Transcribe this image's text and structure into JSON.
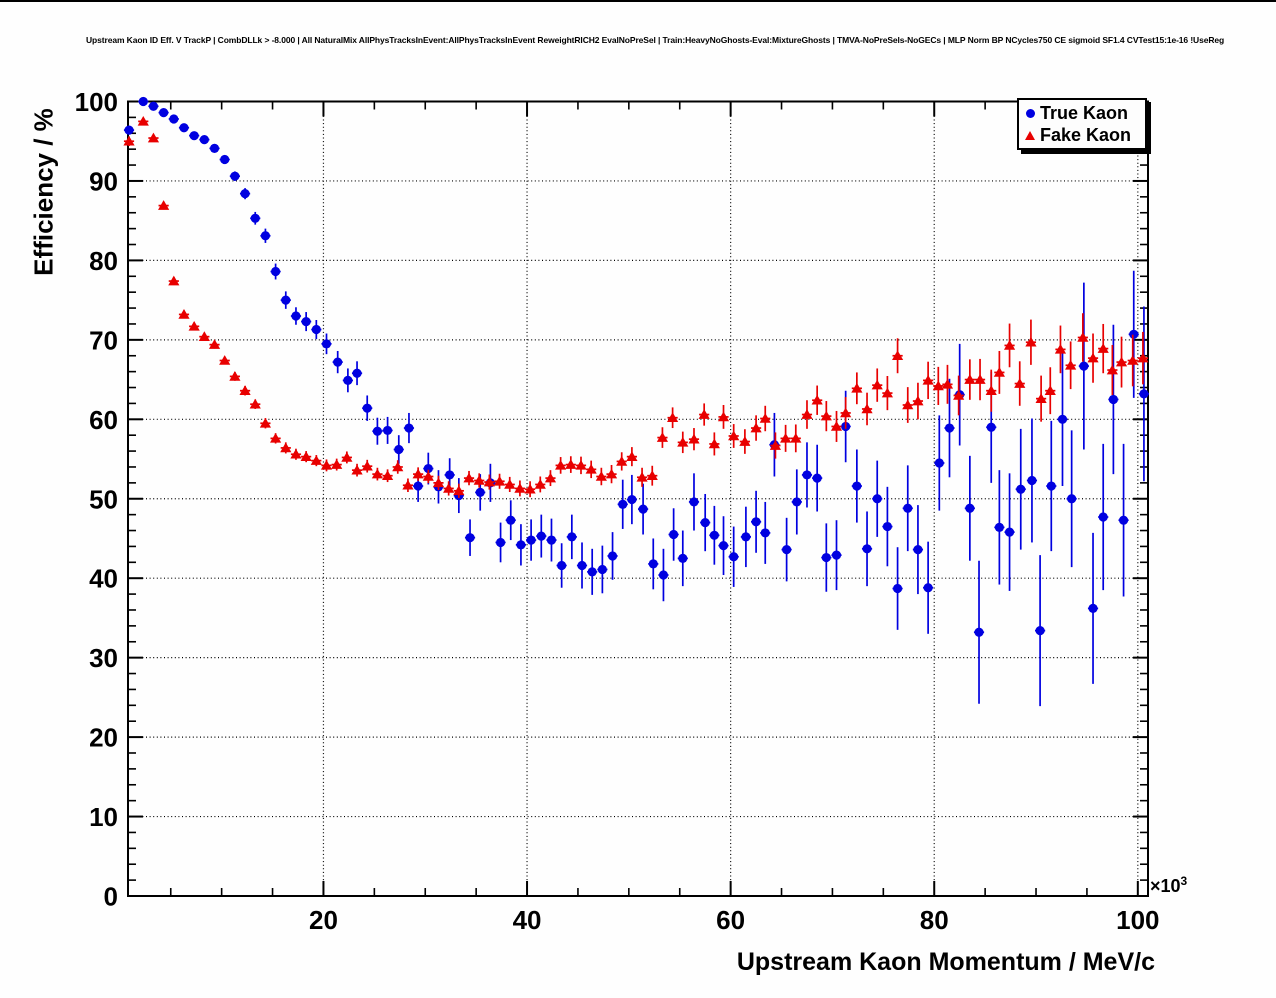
{
  "title": "Upstream Kaon ID Eff. V TrackP | CombDLLk > -8.000 | All NaturalMix AllPhysTracksInEvent:AllPhysTracksInEvent ReweightRICH2 EvalNoPreSel | Train:HeavyNoGhosts-Eval:MixtureGhosts | TMVA-NoPreSels-NoGECs | MLP Norm BP NCycles750 CE sigmoid SF1.4 CVTest15:1e-16 !UseReg",
  "legend": {
    "items": [
      {
        "label": "True Kaon",
        "marker": "circle",
        "color": "#0000e0"
      },
      {
        "label": "Fake Kaon",
        "marker": "triangle",
        "color": "#e80000"
      }
    ]
  },
  "x_power": {
    "prefix": "×10",
    "exponent": "3"
  },
  "chart_data": {
    "type": "scatter",
    "title": "Upstream Kaon ID Eff. V TrackP | CombDLLk > -8.000 | All NaturalMix AllPhysTracksInEvent:AllPhysTracksInEvent ReweightRICH2 EvalNoPreSel | Train:HeavyNoGhosts-Eval:MixtureGhosts | TMVA-NoPreSels-NoGECs | MLP Norm BP NCycles750 CE sigmoid SF1.4 CVTest15:1e-16 !UseReg",
    "xlabel": "Upstream Kaon Momentum / MeV/c",
    "ylabel": "Efficiency / %",
    "x_unit_scale": "x10^3",
    "xlim": [
      0.8,
      101.0
    ],
    "ylim": [
      0,
      100
    ],
    "x_major_ticks": [
      20,
      40,
      60,
      80,
      100
    ],
    "x_tick_labels": [
      "20",
      "40",
      "60",
      "80",
      "100"
    ],
    "x_minor_step": 5,
    "y_major_ticks": [
      0,
      10,
      20,
      30,
      40,
      50,
      60,
      70,
      80,
      90,
      100
    ],
    "y_tick_labels": [
      "0",
      "10",
      "20",
      "30",
      "40",
      "50",
      "60",
      "70",
      "80",
      "90",
      "100"
    ],
    "y_minor_step": 2,
    "grid": "dotted-on-major-ticks",
    "legend_position": "top-right",
    "x_bin_half_width": 0.5,
    "point_format": [
      "x_momentum_1e3_MeV",
      "efficiency_percent",
      "y_error_percent"
    ],
    "series": [
      {
        "name": "True Kaon",
        "marker": "circle",
        "color": "#0000e0",
        "points": [
          [
            0.9,
            96.4,
            0.5
          ],
          [
            2.3,
            100.0,
            0.25
          ],
          [
            3.3,
            99.4,
            0.25
          ],
          [
            4.3,
            98.6,
            0.3
          ],
          [
            5.3,
            97.8,
            0.3
          ],
          [
            6.3,
            96.7,
            0.35
          ],
          [
            7.3,
            95.7,
            0.4
          ],
          [
            8.3,
            95.2,
            0.4
          ],
          [
            9.3,
            94.1,
            0.45
          ],
          [
            10.3,
            92.7,
            0.5
          ],
          [
            11.3,
            90.6,
            0.6
          ],
          [
            12.3,
            88.4,
            0.7
          ],
          [
            13.3,
            85.3,
            0.8
          ],
          [
            14.3,
            83.1,
            0.9
          ],
          [
            15.3,
            78.6,
            1.0
          ],
          [
            16.3,
            75.0,
            1.1
          ],
          [
            17.3,
            73.0,
            1.1
          ],
          [
            18.3,
            72.3,
            1.2
          ],
          [
            19.3,
            71.3,
            1.2
          ],
          [
            20.3,
            69.5,
            1.3
          ],
          [
            21.4,
            67.2,
            1.4
          ],
          [
            22.4,
            64.9,
            1.5
          ],
          [
            23.3,
            65.8,
            1.5
          ],
          [
            24.3,
            61.4,
            1.6
          ],
          [
            25.3,
            58.5,
            1.7
          ],
          [
            26.3,
            58.6,
            1.7
          ],
          [
            27.4,
            56.2,
            1.8
          ],
          [
            28.4,
            58.9,
            1.9
          ],
          [
            29.3,
            51.6,
            2.0
          ],
          [
            30.3,
            53.8,
            2.0
          ],
          [
            31.3,
            51.5,
            2.1
          ],
          [
            32.4,
            53.0,
            2.1
          ],
          [
            33.3,
            50.4,
            2.2
          ],
          [
            34.4,
            45.1,
            2.3
          ],
          [
            35.4,
            50.8,
            2.3
          ],
          [
            36.4,
            52.0,
            2.4
          ],
          [
            37.4,
            44.5,
            2.5
          ],
          [
            38.4,
            47.3,
            2.5
          ],
          [
            39.4,
            44.2,
            2.6
          ],
          [
            40.4,
            44.8,
            2.6
          ],
          [
            41.4,
            45.3,
            2.7
          ],
          [
            42.4,
            44.8,
            2.7
          ],
          [
            43.4,
            41.6,
            2.8
          ],
          [
            44.4,
            45.2,
            2.8
          ],
          [
            45.4,
            41.6,
            2.9
          ],
          [
            46.4,
            40.8,
            2.9
          ],
          [
            47.4,
            41.1,
            3.0
          ],
          [
            48.4,
            42.8,
            3.0
          ],
          [
            49.4,
            49.3,
            3.1
          ],
          [
            50.3,
            49.9,
            3.1
          ],
          [
            51.4,
            48.7,
            3.2
          ],
          [
            52.4,
            41.8,
            3.2
          ],
          [
            53.4,
            40.4,
            3.3
          ],
          [
            54.4,
            45.5,
            3.3
          ],
          [
            55.3,
            42.5,
            3.5
          ],
          [
            56.4,
            49.6,
            3.6
          ],
          [
            57.5,
            47.0,
            3.6
          ],
          [
            58.4,
            45.4,
            3.7
          ],
          [
            59.3,
            44.1,
            3.7
          ],
          [
            60.3,
            42.7,
            3.8
          ],
          [
            61.5,
            45.2,
            3.8
          ],
          [
            62.5,
            47.1,
            3.9
          ],
          [
            63.4,
            45.7,
            3.9
          ],
          [
            64.3,
            56.8,
            4.0
          ],
          [
            65.5,
            43.6,
            4.0
          ],
          [
            66.5,
            49.6,
            4.1
          ],
          [
            67.5,
            53.0,
            4.1
          ],
          [
            68.5,
            52.6,
            4.2
          ],
          [
            69.4,
            42.6,
            4.3
          ],
          [
            70.4,
            42.9,
            4.4
          ],
          [
            71.3,
            59.1,
            4.5
          ],
          [
            72.4,
            51.6,
            4.6
          ],
          [
            73.4,
            43.7,
            4.7
          ],
          [
            74.4,
            50.0,
            4.8
          ],
          [
            75.4,
            46.5,
            5.0
          ],
          [
            76.4,
            38.7,
            5.2
          ],
          [
            77.4,
            48.8,
            5.4
          ],
          [
            78.4,
            43.6,
            5.6
          ],
          [
            79.4,
            38.8,
            5.8
          ],
          [
            80.5,
            54.5,
            6.0
          ],
          [
            81.5,
            58.9,
            6.2
          ],
          [
            82.5,
            63.1,
            6.4
          ],
          [
            83.5,
            48.8,
            6.6
          ],
          [
            84.4,
            33.2,
            9.0
          ],
          [
            85.6,
            59.0,
            7.0
          ],
          [
            86.4,
            46.4,
            7.2
          ],
          [
            87.4,
            45.8,
            7.4
          ],
          [
            88.5,
            51.2,
            7.6
          ],
          [
            89.6,
            52.3,
            7.8
          ],
          [
            90.4,
            33.4,
            9.5
          ],
          [
            91.5,
            51.6,
            8.2
          ],
          [
            92.6,
            60.0,
            8.4
          ],
          [
            93.5,
            50.0,
            8.6
          ],
          [
            94.7,
            66.7,
            10.5
          ],
          [
            95.6,
            36.2,
            9.5
          ],
          [
            96.6,
            47.7,
            9.2
          ],
          [
            97.6,
            62.5,
            9.4
          ],
          [
            98.6,
            47.3,
            9.6
          ],
          [
            99.6,
            70.7,
            8.0
          ],
          [
            100.6,
            63.2,
            11.0
          ]
        ]
      },
      {
        "name": "Fake Kaon",
        "marker": "triangle",
        "color": "#e80000",
        "points": [
          [
            0.9,
            95.0,
            0.6
          ],
          [
            2.3,
            97.5,
            0.4
          ],
          [
            3.3,
            95.4,
            0.4
          ],
          [
            4.3,
            86.9,
            0.5
          ],
          [
            5.3,
            77.4,
            0.5
          ],
          [
            6.3,
            73.2,
            0.5
          ],
          [
            7.3,
            71.7,
            0.5
          ],
          [
            8.3,
            70.4,
            0.5
          ],
          [
            9.3,
            69.4,
            0.5
          ],
          [
            10.3,
            67.4,
            0.5
          ],
          [
            11.3,
            65.4,
            0.55
          ],
          [
            12.3,
            63.6,
            0.6
          ],
          [
            13.3,
            61.9,
            0.6
          ],
          [
            14.3,
            59.5,
            0.65
          ],
          [
            15.3,
            57.6,
            0.65
          ],
          [
            16.3,
            56.4,
            0.7
          ],
          [
            17.3,
            55.6,
            0.7
          ],
          [
            18.3,
            55.3,
            0.7
          ],
          [
            19.3,
            54.8,
            0.7
          ],
          [
            20.3,
            54.2,
            0.75
          ],
          [
            21.3,
            54.3,
            0.75
          ],
          [
            22.3,
            55.2,
            0.75
          ],
          [
            23.3,
            53.6,
            0.8
          ],
          [
            24.3,
            54.1,
            0.8
          ],
          [
            25.3,
            53.1,
            0.8
          ],
          [
            26.3,
            52.9,
            0.8
          ],
          [
            27.3,
            54.0,
            0.85
          ],
          [
            28.3,
            51.7,
            0.85
          ],
          [
            29.3,
            53.1,
            0.85
          ],
          [
            30.3,
            52.8,
            0.85
          ],
          [
            31.3,
            52.0,
            0.9
          ],
          [
            32.3,
            51.3,
            0.9
          ],
          [
            33.3,
            51.0,
            0.9
          ],
          [
            34.3,
            52.6,
            0.9
          ],
          [
            35.3,
            52.3,
            0.9
          ],
          [
            36.3,
            52.1,
            0.95
          ],
          [
            37.3,
            52.2,
            0.95
          ],
          [
            38.3,
            51.8,
            0.95
          ],
          [
            39.3,
            51.3,
            1.0
          ],
          [
            40.3,
            51.2,
            1.0
          ],
          [
            41.3,
            51.8,
            1.0
          ],
          [
            42.3,
            52.6,
            1.0
          ],
          [
            43.3,
            54.2,
            1.05
          ],
          [
            44.3,
            54.3,
            1.05
          ],
          [
            45.3,
            54.2,
            1.1
          ],
          [
            46.3,
            53.7,
            1.1
          ],
          [
            47.3,
            52.8,
            1.1
          ],
          [
            48.3,
            53.1,
            1.15
          ],
          [
            49.3,
            54.7,
            1.15
          ],
          [
            50.3,
            55.3,
            1.2
          ],
          [
            51.3,
            52.7,
            1.2
          ],
          [
            52.3,
            52.9,
            1.25
          ],
          [
            53.3,
            57.7,
            1.3
          ],
          [
            54.3,
            60.2,
            1.3
          ],
          [
            55.3,
            57.1,
            1.35
          ],
          [
            56.4,
            57.5,
            1.4
          ],
          [
            57.4,
            60.6,
            1.4
          ],
          [
            58.4,
            56.9,
            1.45
          ],
          [
            59.3,
            60.3,
            1.5
          ],
          [
            60.3,
            57.9,
            1.5
          ],
          [
            61.4,
            57.2,
            1.55
          ],
          [
            62.5,
            58.9,
            1.6
          ],
          [
            63.4,
            60.1,
            1.6
          ],
          [
            64.4,
            56.7,
            1.65
          ],
          [
            65.4,
            57.6,
            1.7
          ],
          [
            66.4,
            57.6,
            1.75
          ],
          [
            67.5,
            60.6,
            1.8
          ],
          [
            68.5,
            62.4,
            1.85
          ],
          [
            69.4,
            60.4,
            1.9
          ],
          [
            70.4,
            59.1,
            1.95
          ],
          [
            71.3,
            60.8,
            2.0
          ],
          [
            72.4,
            63.9,
            2.0
          ],
          [
            73.4,
            61.3,
            2.05
          ],
          [
            74.4,
            64.3,
            2.1
          ],
          [
            75.4,
            63.3,
            2.15
          ],
          [
            76.4,
            68.0,
            2.2
          ],
          [
            77.4,
            61.8,
            2.25
          ],
          [
            78.4,
            62.3,
            2.3
          ],
          [
            79.4,
            64.9,
            2.35
          ],
          [
            80.4,
            64.2,
            2.4
          ],
          [
            81.3,
            64.4,
            2.45
          ],
          [
            82.4,
            63.0,
            2.5
          ],
          [
            83.5,
            65.0,
            2.55
          ],
          [
            84.5,
            65.0,
            2.6
          ],
          [
            85.6,
            63.6,
            2.65
          ],
          [
            86.4,
            65.9,
            2.7
          ],
          [
            87.4,
            69.3,
            2.75
          ],
          [
            88.4,
            64.5,
            2.8
          ],
          [
            89.5,
            69.7,
            2.85
          ],
          [
            90.5,
            62.6,
            2.9
          ],
          [
            91.4,
            63.6,
            2.95
          ],
          [
            92.4,
            68.8,
            3.0
          ],
          [
            93.4,
            66.8,
            3.0
          ],
          [
            94.6,
            70.3,
            3.05
          ],
          [
            95.6,
            67.7,
            3.1
          ],
          [
            96.6,
            68.9,
            3.1
          ],
          [
            97.5,
            66.2,
            3.15
          ],
          [
            98.4,
            67.2,
            3.2
          ],
          [
            99.5,
            67.4,
            3.25
          ],
          [
            100.5,
            67.7,
            3.3
          ]
        ]
      }
    ]
  }
}
